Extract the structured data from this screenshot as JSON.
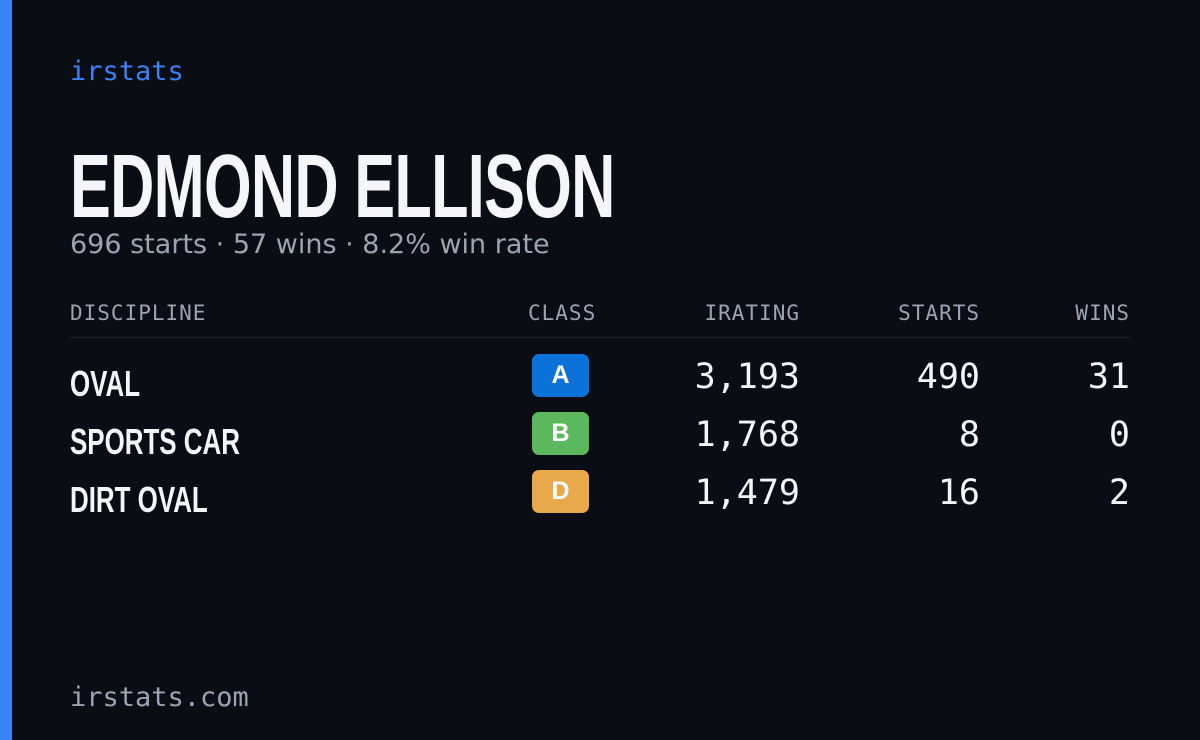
{
  "header": {
    "brand": "irstats",
    "name": "EDMOND ELLISON",
    "summary": "696 starts · 57 wins · 8.2% win rate"
  },
  "table": {
    "columns": [
      "DISCIPLINE",
      "CLASS",
      "IRATING",
      "STARTS",
      "WINS"
    ],
    "rows": [
      [
        "OVAL",
        "A",
        "3,193",
        "490",
        "31"
      ],
      [
        "SPORTS CAR",
        "B",
        "1,768",
        "8",
        "0"
      ],
      [
        "DIRT OVAL",
        "D",
        "1,479",
        "16",
        "2"
      ]
    ],
    "class_colors": [
      "#0a72d8",
      "#5cb85c",
      "#e8a94b"
    ]
  },
  "footer": {
    "site": "irstats.com"
  }
}
